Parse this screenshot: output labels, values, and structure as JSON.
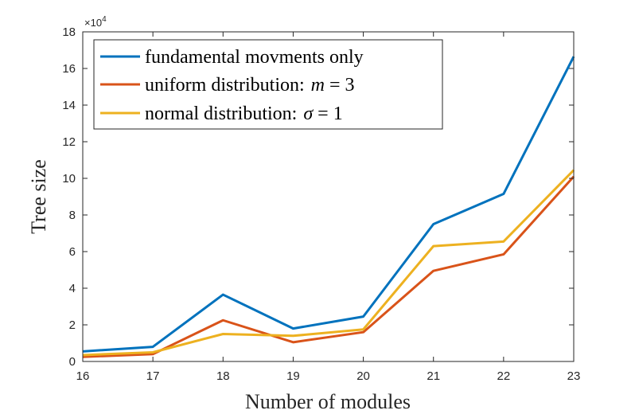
{
  "chart_data": {
    "type": "line",
    "xlabel": "Number of modules",
    "ylabel": "Tree size",
    "x": [
      16,
      17,
      18,
      19,
      20,
      21,
      22,
      23
    ],
    "xlim": [
      16,
      23
    ],
    "ylim": [
      0,
      180000
    ],
    "x_ticks": [
      "16",
      "17",
      "18",
      "19",
      "20",
      "21",
      "22",
      "23"
    ],
    "y_ticks": [
      "0",
      "2",
      "4",
      "6",
      "8",
      "10",
      "12",
      "14",
      "16",
      "18"
    ],
    "y_exponent": {
      "base": "×10",
      "power": "4"
    },
    "legend_position": "top-left",
    "series": [
      {
        "name": "fundamental movments only",
        "color": "#0072BD",
        "values": [
          5500,
          8000,
          36500,
          18000,
          24500,
          75000,
          91500,
          166500
        ]
      },
      {
        "name": "uniform distribution:",
        "math": "m = 3",
        "color": "#D95319",
        "values": [
          2500,
          4000,
          22500,
          10500,
          16000,
          49500,
          58500,
          101000
        ]
      },
      {
        "name": "normal distribution:",
        "math": "σ = 1",
        "color": "#EDB120",
        "values": [
          3500,
          5000,
          15000,
          14000,
          17500,
          63000,
          65500,
          104500
        ]
      }
    ]
  }
}
